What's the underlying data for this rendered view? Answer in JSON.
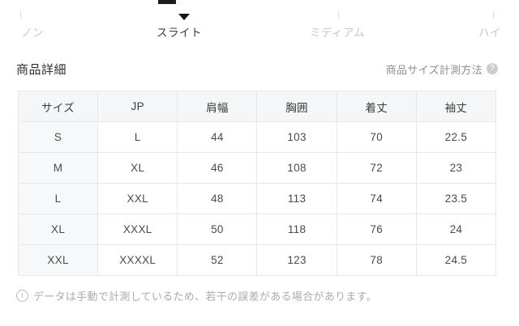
{
  "scale": {
    "marker_icon": "triangle-down-icon",
    "options": [
      {
        "label": "ノン",
        "selected": false
      },
      {
        "label": "スライト",
        "selected": true
      },
      {
        "label": "ミディアム",
        "selected": false
      },
      {
        "label": "ハイ",
        "selected": false
      }
    ]
  },
  "section": {
    "title": "商品詳細",
    "measure_guide_label": "商品サイズ計測方法",
    "help_icon": "question-circle-icon",
    "help_glyph": "?"
  },
  "size_table": {
    "headers": [
      "サイズ",
      "JP",
      "肩幅",
      "胸囲",
      "着丈",
      "袖丈"
    ],
    "rows": [
      [
        "S",
        "L",
        "44",
        "103",
        "70",
        "22.5"
      ],
      [
        "M",
        "XL",
        "46",
        "108",
        "72",
        "23"
      ],
      [
        "L",
        "XXL",
        "48",
        "113",
        "74",
        "23.5"
      ],
      [
        "XL",
        "XXXL",
        "50",
        "118",
        "76",
        "24"
      ],
      [
        "XXL",
        "XXXXL",
        "52",
        "123",
        "78",
        "24.5"
      ]
    ]
  },
  "note": {
    "icon": "info-circle-icon",
    "glyph": "i",
    "text": "データは手動で計測しているため、若干の誤差がある場合があります。"
  },
  "colors": {
    "selected_text": "#3b3b3b",
    "muted_text": "#c7c7c7",
    "table_border": "#e7e7e7",
    "header_bg": "#f5f6f7",
    "first_col_bg": "#f7f8f9",
    "note_text": "#ababab",
    "marker": "#141414"
  }
}
